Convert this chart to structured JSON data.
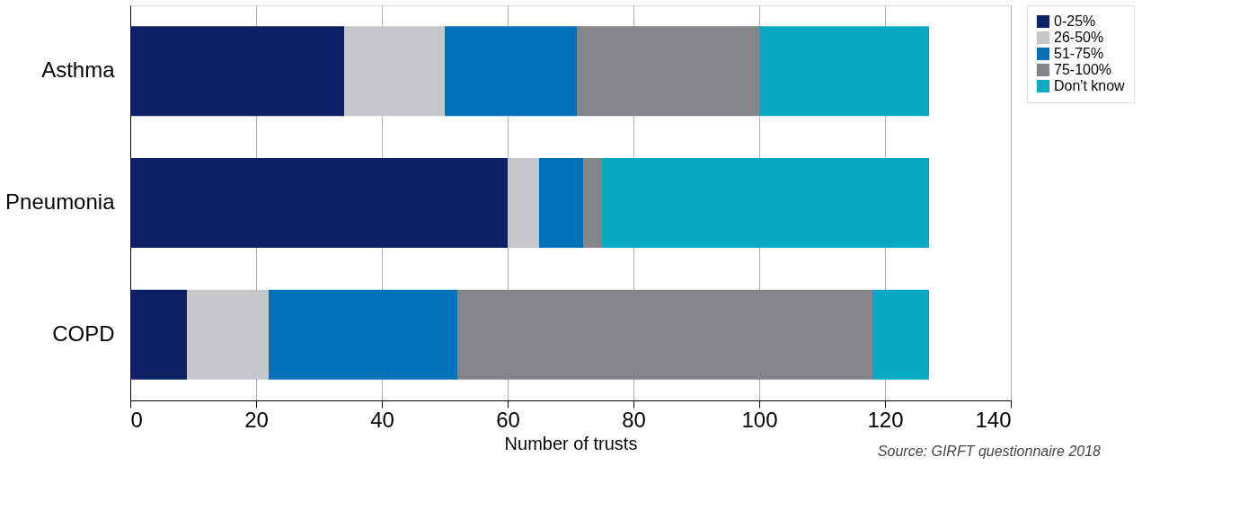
{
  "chart_data": {
    "type": "bar",
    "orientation": "horizontal",
    "stacked": true,
    "xlabel": "Number of trusts",
    "categories": [
      "Asthma",
      "Pneumonia",
      "COPD"
    ],
    "series": [
      {
        "name": "0-25%",
        "color": "#0e2166",
        "values": [
          34,
          60,
          9
        ]
      },
      {
        "name": "26-50%",
        "color": "#c6c7c9",
        "values": [
          16,
          5,
          13
        ]
      },
      {
        "name": "51-75%",
        "color": "#0072bc",
        "values": [
          21,
          7,
          30
        ]
      },
      {
        "name": "75-100%",
        "color": "#848589",
        "values": [
          29,
          3,
          66
        ]
      },
      {
        "name": "Don't know",
        "color": "#08a9c4",
        "values": [
          27,
          52,
          9
        ]
      }
    ],
    "xlim": [
      0,
      140
    ],
    "xticks": [
      0,
      20,
      40,
      60,
      80,
      100,
      120,
      140
    ],
    "grid": "x",
    "legend": "right",
    "annotations": [
      "Source: GIRFT questionnaire 2018"
    ]
  }
}
